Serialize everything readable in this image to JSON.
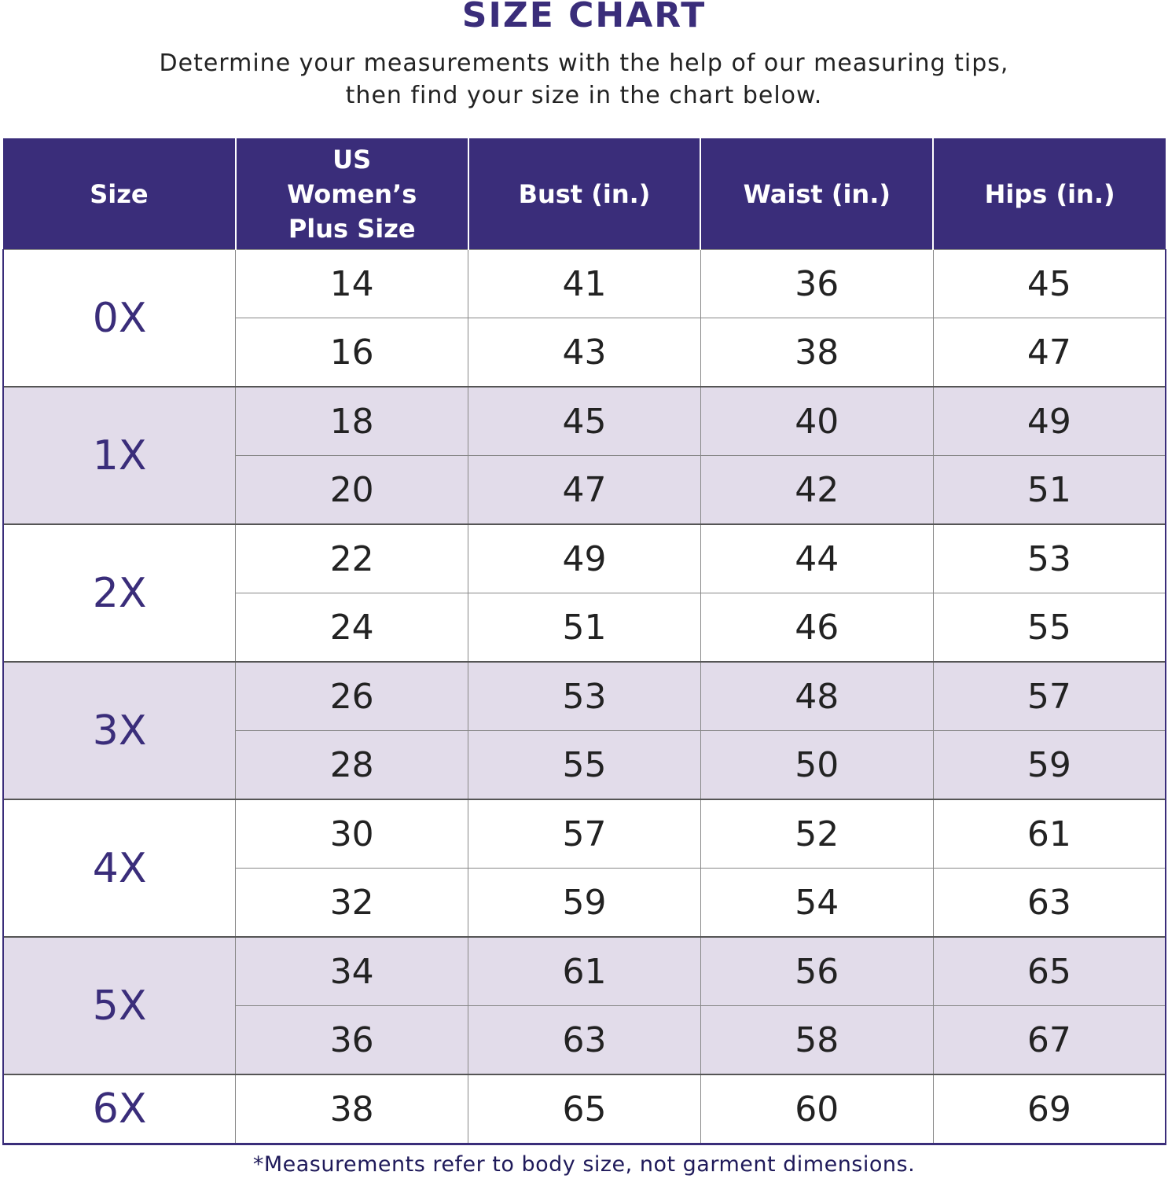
{
  "title": "SIZE CHART",
  "subtitle_line1": "Determine your measurements with the help of our measuring tips,",
  "subtitle_line2": "then find your size in the chart below.",
  "colors": {
    "header": "#3a2d7a",
    "shaded_row": "#e2dcea",
    "size_label": "#3a2d7a"
  },
  "table": {
    "headers": [
      "Size",
      "US Women’s Plus Size",
      "Bust (in.)",
      "Waist (in.)",
      "Hips (in.)"
    ],
    "groups": [
      {
        "size": "0X",
        "shaded": false,
        "rows": [
          [
            "14",
            "41",
            "36",
            "45"
          ],
          [
            "16",
            "43",
            "38",
            "47"
          ]
        ]
      },
      {
        "size": "1X",
        "shaded": true,
        "rows": [
          [
            "18",
            "45",
            "40",
            "49"
          ],
          [
            "20",
            "47",
            "42",
            "51"
          ]
        ]
      },
      {
        "size": "2X",
        "shaded": false,
        "rows": [
          [
            "22",
            "49",
            "44",
            "53"
          ],
          [
            "24",
            "51",
            "46",
            "55"
          ]
        ]
      },
      {
        "size": "3X",
        "shaded": true,
        "rows": [
          [
            "26",
            "53",
            "48",
            "57"
          ],
          [
            "28",
            "55",
            "50",
            "59"
          ]
        ]
      },
      {
        "size": "4X",
        "shaded": false,
        "rows": [
          [
            "30",
            "57",
            "52",
            "61"
          ],
          [
            "32",
            "59",
            "54",
            "63"
          ]
        ]
      },
      {
        "size": "5X",
        "shaded": true,
        "rows": [
          [
            "34",
            "61",
            "56",
            "65"
          ],
          [
            "36",
            "63",
            "58",
            "67"
          ]
        ]
      },
      {
        "size": "6X",
        "shaded": false,
        "rows": [
          [
            "38",
            "65",
            "60",
            "69"
          ]
        ]
      }
    ]
  },
  "footnote": "*Measurements refer to body size, not garment dimensions."
}
